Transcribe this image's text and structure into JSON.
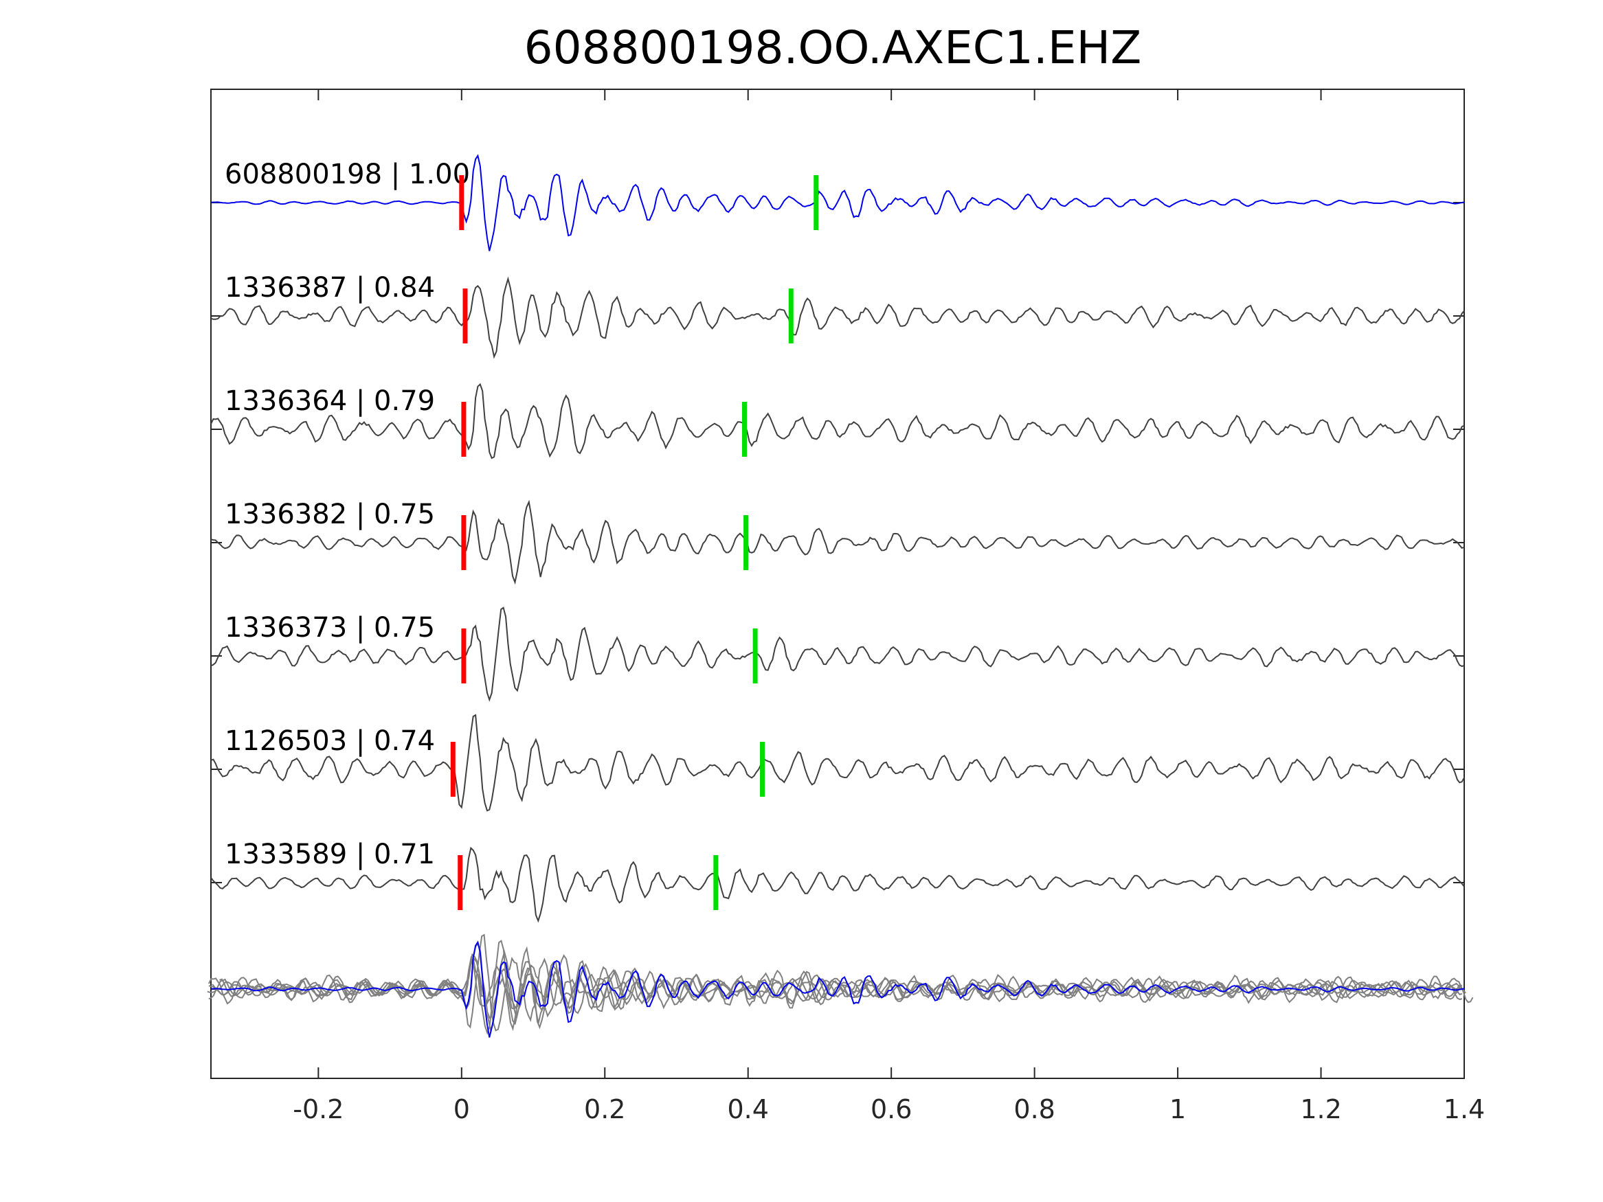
{
  "chart_data": {
    "type": "line",
    "title": "608800198.OO.AXEC1.EHZ",
    "xlabel": "",
    "ylabel": "",
    "xlim": [
      -0.35,
      1.4
    ],
    "xticks": [
      -0.2,
      0,
      0.2,
      0.4,
      0.6,
      0.8,
      1,
      1.2,
      1.4
    ],
    "xtick_labels": [
      "-0.2",
      "0",
      "0.2",
      "0.4",
      "0.6",
      "0.8",
      "1",
      "1.2",
      "1.4"
    ],
    "grid": false,
    "legend": "none",
    "colors": {
      "reference_trace": "#0000ee",
      "matched_trace": "#404040",
      "stack_trace": "#808080",
      "p_pick": "#ff0000",
      "s_pick": "#00dd00",
      "axes": "#262626"
    },
    "traces": [
      {
        "event_id": "608800198",
        "correlation": "1.00",
        "label": "608800198 | 1.00",
        "p_pick": 0.0,
        "s_pick": 0.495,
        "reference": true
      },
      {
        "event_id": "1336387",
        "correlation": "0.84",
        "label": "1336387 | 0.84",
        "p_pick": 0.005,
        "s_pick": 0.46,
        "reference": false
      },
      {
        "event_id": "1336364",
        "correlation": "0.79",
        "label": "1336364 | 0.79",
        "p_pick": 0.003,
        "s_pick": 0.395,
        "reference": false
      },
      {
        "event_id": "1336382",
        "correlation": "0.75",
        "label": "1336382 | 0.75",
        "p_pick": 0.003,
        "s_pick": 0.397,
        "reference": false
      },
      {
        "event_id": "1336373",
        "correlation": "0.75",
        "label": "1336373 | 0.75",
        "p_pick": 0.003,
        "s_pick": 0.41,
        "reference": false
      },
      {
        "event_id": "1126503",
        "correlation": "0.74",
        "label": "1126503 | 0.74",
        "p_pick": -0.012,
        "s_pick": 0.42,
        "reference": false
      },
      {
        "event_id": "1333589",
        "correlation": "0.71",
        "label": "1333589 | 0.71",
        "p_pick": -0.002,
        "s_pick": 0.355,
        "reference": false
      }
    ],
    "stack": {
      "description_visible": false
    }
  }
}
